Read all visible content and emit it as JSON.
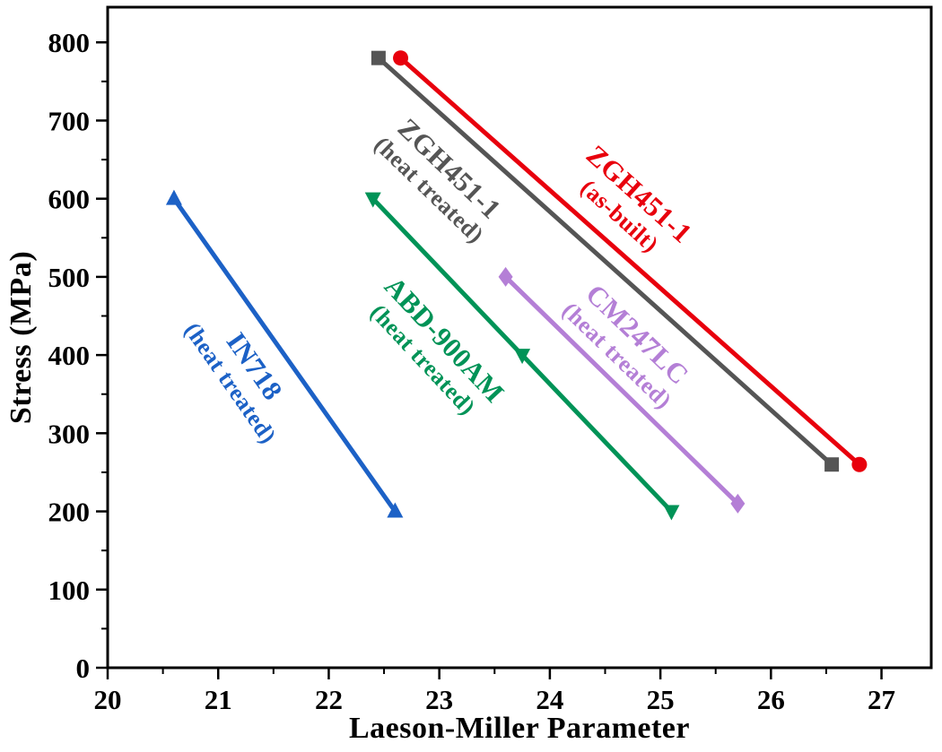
{
  "chart_data": {
    "type": "line",
    "title": "",
    "xlabel": "Laeson-Miller Parameter",
    "ylabel": "Stress (MPa)",
    "xlim": [
      20,
      27.45
    ],
    "ylim": [
      0,
      845
    ],
    "x_ticks": [
      20,
      21,
      22,
      23,
      24,
      25,
      26,
      27
    ],
    "y_ticks": [
      0,
      100,
      200,
      300,
      400,
      500,
      600,
      700,
      800
    ],
    "x_minor_step": 0.5,
    "y_minor_step": 50,
    "grid": false,
    "legend": "inline-rotated-labels",
    "frame_color": "#000000",
    "series": [
      {
        "name": "ZGH451-1 (heat treated)",
        "color": "#555555",
        "marker": "square",
        "points": [
          [
            22.45,
            780
          ],
          [
            26.55,
            260
          ]
        ],
        "marker_points": [
          [
            22.45,
            780
          ],
          [
            26.55,
            260
          ]
        ],
        "label": {
          "lines": [
            "ZGH451-1",
            "(heat treated)"
          ],
          "x": 23.0,
          "y": 625,
          "angle": 44
        }
      },
      {
        "name": "ZGH451-1 (as-built)",
        "color": "#e8000d",
        "marker": "circle",
        "points": [
          [
            22.65,
            780
          ],
          [
            26.8,
            260
          ]
        ],
        "marker_points": [
          [
            22.65,
            780
          ],
          [
            26.8,
            260
          ]
        ],
        "label": {
          "lines": [
            "ZGH451-1",
            "(as-built)"
          ],
          "x": 24.72,
          "y": 592,
          "angle": 42
        }
      },
      {
        "name": "IN718 (heat treated)",
        "color": "#1c61c6",
        "marker": "triangle-up",
        "points": [
          [
            20.6,
            600
          ],
          [
            22.6,
            200
          ]
        ],
        "marker_points": [
          [
            20.6,
            600
          ],
          [
            22.6,
            200
          ]
        ],
        "label": {
          "lines": [
            "IN718",
            "(heat treated)"
          ],
          "x": 21.22,
          "y": 375,
          "angle": 55
        }
      },
      {
        "name": "ABD-900AM (heat treated)",
        "color": "#009357",
        "marker": "triangle-down",
        "points": [
          [
            22.4,
            600
          ],
          [
            25.1,
            200
          ]
        ],
        "marker_points": [
          [
            22.4,
            600
          ],
          [
            23.75,
            400
          ],
          [
            25.1,
            200
          ]
        ],
        "label": {
          "lines": [
            "ABD-900AM",
            "(heat treated)"
          ],
          "x": 22.95,
          "y": 407,
          "angle": 47
        }
      },
      {
        "name": "CM247LC (heat treated)",
        "color": "#b47fd6",
        "marker": "diamond",
        "points": [
          [
            23.6,
            500
          ],
          [
            25.7,
            210
          ]
        ],
        "marker_points": [
          [
            23.6,
            500
          ],
          [
            25.7,
            210
          ]
        ],
        "label": {
          "lines": [
            "CM247LC",
            "(heat treated)"
          ],
          "x": 24.7,
          "y": 413,
          "angle": 44
        }
      }
    ]
  }
}
